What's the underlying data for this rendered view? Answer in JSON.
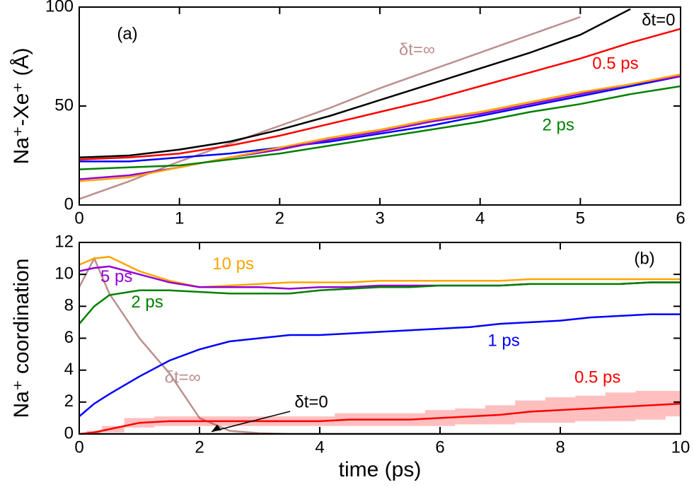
{
  "chart_data": [
    {
      "type": "line",
      "panel_label": "(a)",
      "y_label": "Na⁺-Xe⁺ (Å)",
      "x": [
        0,
        0.5,
        1,
        1.5,
        2,
        2.5,
        3,
        3.5,
        4,
        4.5,
        5,
        5.5,
        6
      ],
      "xlim": [
        0,
        6
      ],
      "xticks": [
        0,
        1,
        2,
        3,
        4,
        5,
        6
      ],
      "ylim": [
        0,
        100
      ],
      "yticks": [
        0,
        50,
        100
      ],
      "series": [
        {
          "name": "δt=∞",
          "color": "#bc8f8f",
          "values": [
            3,
            12,
            22,
            31,
            40,
            49,
            59,
            68,
            77,
            86,
            95,
            null,
            null
          ]
        },
        {
          "color": "#0000ff",
          "values": [
            22,
            22,
            24,
            26,
            29,
            32,
            36,
            40,
            45,
            50,
            55,
            60,
            65
          ]
        },
        {
          "color": "#9400d3",
          "values": [
            13,
            15,
            19,
            24,
            28,
            33,
            37,
            42,
            46,
            51,
            56,
            61,
            65
          ]
        },
        {
          "color": "#ffa500",
          "values": [
            12,
            14,
            19,
            24,
            29,
            34,
            38,
            43,
            47,
            52,
            57,
            61,
            66
          ]
        },
        {
          "name": "2 ps",
          "color": "#008000",
          "values": [
            18,
            19,
            20,
            23,
            26,
            30,
            34,
            38,
            42,
            47,
            51,
            56,
            60
          ]
        },
        {
          "name": "0.5 ps",
          "color": "#ff0000",
          "values": [
            23,
            24,
            26,
            30,
            35,
            41,
            47,
            53,
            60,
            67,
            74,
            82,
            89
          ]
        },
        {
          "name": "δt=0",
          "color": "#000000",
          "values": [
            24,
            25,
            28,
            32,
            38,
            45,
            53,
            61,
            69,
            77,
            86,
            99,
            null
          ]
        }
      ]
    },
    {
      "type": "line",
      "panel_label": "(b)",
      "y_label": "Na⁺ coordination",
      "x_label": "time (ps)",
      "x": [
        0,
        0.25,
        0.5,
        1,
        1.5,
        2,
        2.5,
        3,
        3.5,
        4,
        4.5,
        5,
        5.5,
        6,
        6.5,
        7,
        7.5,
        8,
        8.5,
        9,
        9.5,
        10
      ],
      "xlim": [
        0,
        10
      ],
      "xticks": [
        0,
        2,
        4,
        6,
        8,
        10
      ],
      "ylim": [
        0,
        12
      ],
      "yticks": [
        0,
        2,
        4,
        6,
        8,
        10,
        12
      ],
      "series": [
        {
          "name": "δt=∞",
          "color": "#bc8f8f",
          "values": [
            9.2,
            11.0,
            8.8,
            6.0,
            3.8,
            1.0,
            0.2,
            0.05,
            0,
            0,
            0,
            0,
            0,
            0,
            0,
            0,
            0,
            0,
            0,
            0,
            0,
            0
          ]
        },
        {
          "name": "δt=0",
          "color": "#000000",
          "values": [
            0,
            0,
            0,
            0,
            0,
            0,
            0,
            0,
            0,
            0,
            0,
            0,
            0,
            0,
            0,
            0,
            0,
            0,
            0,
            0,
            0,
            0
          ]
        },
        {
          "name": "10 ps",
          "color": "#ffa500",
          "values": [
            10.6,
            11.0,
            11.1,
            10.2,
            9.6,
            9.2,
            9.3,
            9.4,
            9.5,
            9.5,
            9.5,
            9.6,
            9.6,
            9.6,
            9.6,
            9.6,
            9.7,
            9.7,
            9.7,
            9.7,
            9.7,
            9.7
          ]
        },
        {
          "name": "5 ps",
          "color": "#9400d3",
          "values": [
            10.2,
            10.4,
            10.5,
            10.0,
            9.5,
            9.2,
            9.2,
            9.2,
            9.1,
            9.2,
            9.2,
            9.3,
            9.3,
            9.3,
            9.3,
            9.3,
            9.4,
            9.4,
            9.4,
            9.4,
            9.5,
            9.5
          ]
        },
        {
          "name": "2 ps",
          "color": "#008000",
          "values": [
            6.9,
            8.0,
            8.7,
            9.0,
            9.0,
            8.9,
            8.8,
            8.8,
            8.8,
            9.0,
            9.1,
            9.2,
            9.2,
            9.3,
            9.3,
            9.3,
            9.4,
            9.4,
            9.4,
            9.4,
            9.5,
            9.5
          ]
        },
        {
          "name": "1 ps",
          "color": "#0000ff",
          "values": [
            1.1,
            1.9,
            2.5,
            3.6,
            4.6,
            5.3,
            5.8,
            6.0,
            6.2,
            6.2,
            6.3,
            6.4,
            6.5,
            6.6,
            6.7,
            6.9,
            7.0,
            7.1,
            7.3,
            7.4,
            7.5,
            7.5
          ]
        },
        {
          "name": "0.5 ps",
          "color": "#ff0000",
          "values": [
            0,
            0.1,
            0.3,
            0.7,
            0.8,
            0.8,
            0.8,
            0.8,
            0.8,
            0.8,
            0.9,
            0.9,
            0.9,
            1.0,
            1.1,
            1.2,
            1.4,
            1.5,
            1.6,
            1.7,
            1.8,
            1.9
          ],
          "error": [
            0,
            0.1,
            0.2,
            0.3,
            0.3,
            0.3,
            0.3,
            0.3,
            0.3,
            0.3,
            0.4,
            0.4,
            0.4,
            0.5,
            0.5,
            0.6,
            0.7,
            0.8,
            0.8,
            0.9,
            0.9,
            0.8
          ]
        }
      ]
    }
  ]
}
